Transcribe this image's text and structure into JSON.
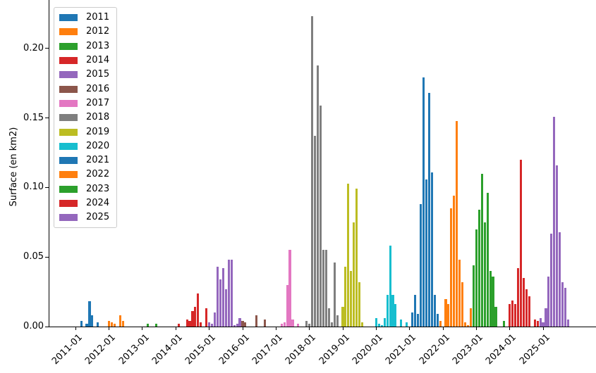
{
  "figure": {
    "ylabel": "Surface (en km2)"
  },
  "chart_data": {
    "type": "bar",
    "title": "",
    "xlabel": "",
    "ylabel": "Surface (en km2)",
    "ylim": [
      0,
      0.2345
    ],
    "grid": false,
    "legend_position": "upper left",
    "x_unit": "month index, 0 = 2011-01",
    "xlim_months": [
      -9.7,
      187
    ],
    "y_ticks": [
      {
        "value": 0.0,
        "label": "0.00"
      },
      {
        "value": 0.05,
        "label": "0.05"
      },
      {
        "value": 0.1,
        "label": "0.10"
      },
      {
        "value": 0.15,
        "label": "0.15"
      },
      {
        "value": 0.2,
        "label": "0.20"
      }
    ],
    "x_ticks": [
      {
        "month": 0,
        "label": "2011-01"
      },
      {
        "month": 12,
        "label": "2012-01"
      },
      {
        "month": 24,
        "label": "2013-01"
      },
      {
        "month": 36,
        "label": "2014-01"
      },
      {
        "month": 48,
        "label": "2015-01"
      },
      {
        "month": 60,
        "label": "2016-01"
      },
      {
        "month": 72,
        "label": "2017-01"
      },
      {
        "month": 84,
        "label": "2018-01"
      },
      {
        "month": 96,
        "label": "2019-01"
      },
      {
        "month": 108,
        "label": "2020-01"
      },
      {
        "month": 120,
        "label": "2021-01"
      },
      {
        "month": 132,
        "label": "2022-01"
      },
      {
        "month": 144,
        "label": "2023-01"
      },
      {
        "month": 156,
        "label": "2024-01"
      },
      {
        "month": 168,
        "label": "2025-01"
      }
    ],
    "series": [
      {
        "name": "2011",
        "color": "#1f77b4",
        "points": [
          [
            2,
            0.004
          ],
          [
            4,
            0.002
          ],
          [
            5,
            0.018
          ],
          [
            6,
            0.008
          ],
          [
            8,
            0.003
          ]
        ]
      },
      {
        "name": "2012",
        "color": "#ff7f0e",
        "points": [
          [
            12,
            0.004
          ],
          [
            13,
            0.003
          ],
          [
            14,
            0.002
          ],
          [
            16,
            0.008
          ],
          [
            17,
            0.004
          ]
        ]
      },
      {
        "name": "2013",
        "color": "#2ca02c",
        "points": [
          [
            26,
            0.002
          ],
          [
            29,
            0.002
          ]
        ]
      },
      {
        "name": "2014",
        "color": "#d62728",
        "points": [
          [
            37,
            0.002
          ],
          [
            40,
            0.005
          ],
          [
            41,
            0.004
          ],
          [
            42,
            0.011
          ],
          [
            43,
            0.014
          ],
          [
            44,
            0.024
          ],
          [
            45,
            0.003
          ],
          [
            47,
            0.013
          ]
        ]
      },
      {
        "name": "2015",
        "color": "#9467bd",
        "points": [
          [
            48,
            0.003
          ],
          [
            49,
            0.002
          ],
          [
            50,
            0.01
          ],
          [
            51,
            0.043
          ],
          [
            52,
            0.034
          ],
          [
            53,
            0.042
          ],
          [
            54,
            0.027
          ],
          [
            55,
            0.048
          ],
          [
            56,
            0.048
          ],
          [
            57,
            0.001
          ],
          [
            58,
            0.002
          ],
          [
            59,
            0.006
          ]
        ]
      },
      {
        "name": "2016",
        "color": "#8c564b",
        "points": [
          [
            60,
            0.004
          ],
          [
            61,
            0.003
          ],
          [
            65,
            0.008
          ],
          [
            68,
            0.005
          ]
        ]
      },
      {
        "name": "2017",
        "color": "#e377c2",
        "points": [
          [
            74,
            0.002
          ],
          [
            75,
            0.003
          ],
          [
            76,
            0.03
          ],
          [
            77,
            0.055
          ],
          [
            78,
            0.005
          ],
          [
            80,
            0.002
          ]
        ]
      },
      {
        "name": "2018",
        "color": "#7f7f7f",
        "points": [
          [
            83,
            0.004
          ],
          [
            84,
            0.002
          ],
          [
            85,
            0.223
          ],
          [
            86,
            0.137
          ],
          [
            87,
            0.188
          ],
          [
            88,
            0.159
          ],
          [
            89,
            0.055
          ],
          [
            90,
            0.055
          ],
          [
            91,
            0.013
          ],
          [
            92,
            0.003
          ],
          [
            93,
            0.046
          ],
          [
            94,
            0.008
          ]
        ]
      },
      {
        "name": "2019",
        "color": "#bcbd22",
        "points": [
          [
            96,
            0.014
          ],
          [
            97,
            0.043
          ],
          [
            98,
            0.103
          ],
          [
            99,
            0.04
          ],
          [
            100,
            0.075
          ],
          [
            101,
            0.099
          ],
          [
            102,
            0.032
          ],
          [
            103,
            0.003
          ]
        ]
      },
      {
        "name": "2020",
        "color": "#17becf",
        "points": [
          [
            108,
            0.006
          ],
          [
            109,
            0.002
          ],
          [
            110,
            0.001
          ],
          [
            111,
            0.006
          ],
          [
            112,
            0.023
          ],
          [
            113,
            0.058
          ],
          [
            114,
            0.023
          ],
          [
            115,
            0.016
          ],
          [
            117,
            0.005
          ],
          [
            119,
            0.003
          ]
        ]
      },
      {
        "name": "2021",
        "color": "#1f77b4",
        "points": [
          [
            121,
            0.01
          ],
          [
            122,
            0.023
          ],
          [
            123,
            0.009
          ],
          [
            124,
            0.088
          ],
          [
            125,
            0.179
          ],
          [
            126,
            0.106
          ],
          [
            127,
            0.168
          ],
          [
            128,
            0.111
          ],
          [
            129,
            0.023
          ],
          [
            130,
            0.009
          ]
        ]
      },
      {
        "name": "2022",
        "color": "#ff7f0e",
        "points": [
          [
            131,
            0.004
          ],
          [
            133,
            0.02
          ],
          [
            134,
            0.016
          ],
          [
            135,
            0.085
          ],
          [
            136,
            0.094
          ],
          [
            137,
            0.148
          ],
          [
            138,
            0.048
          ],
          [
            139,
            0.032
          ],
          [
            140,
            0.003
          ],
          [
            141,
            0.001
          ],
          [
            142,
            0.013
          ]
        ]
      },
      {
        "name": "2023",
        "color": "#2ca02c",
        "points": [
          [
            143,
            0.044
          ],
          [
            144,
            0.07
          ],
          [
            145,
            0.084
          ],
          [
            146,
            0.11
          ],
          [
            147,
            0.075
          ],
          [
            148,
            0.096
          ],
          [
            149,
            0.04
          ],
          [
            150,
            0.036
          ],
          [
            151,
            0.014
          ],
          [
            154,
            0.004
          ]
        ]
      },
      {
        "name": "2024",
        "color": "#d62728",
        "points": [
          [
            156,
            0.016
          ],
          [
            157,
            0.019
          ],
          [
            158,
            0.016
          ],
          [
            159,
            0.042
          ],
          [
            160,
            0.12
          ],
          [
            161,
            0.035
          ],
          [
            162,
            0.027
          ],
          [
            163,
            0.022
          ],
          [
            165,
            0.005
          ],
          [
            166,
            0.004
          ]
        ]
      },
      {
        "name": "2025",
        "color": "#9467bd",
        "points": [
          [
            167,
            0.006
          ],
          [
            168,
            0.003
          ],
          [
            169,
            0.013
          ],
          [
            170,
            0.036
          ],
          [
            171,
            0.067
          ],
          [
            172,
            0.151
          ],
          [
            173,
            0.116
          ],
          [
            174,
            0.068
          ],
          [
            175,
            0.032
          ],
          [
            176,
            0.028
          ],
          [
            177,
            0.005
          ]
        ]
      }
    ]
  },
  "legend": {
    "entries": [
      {
        "label": "2011",
        "color": "#1f77b4"
      },
      {
        "label": "2012",
        "color": "#ff7f0e"
      },
      {
        "label": "2013",
        "color": "#2ca02c"
      },
      {
        "label": "2014",
        "color": "#d62728"
      },
      {
        "label": "2015",
        "color": "#9467bd"
      },
      {
        "label": "2016",
        "color": "#8c564b"
      },
      {
        "label": "2017",
        "color": "#e377c2"
      },
      {
        "label": "2018",
        "color": "#7f7f7f"
      },
      {
        "label": "2019",
        "color": "#bcbd22"
      },
      {
        "label": "2020",
        "color": "#17becf"
      },
      {
        "label": "2021",
        "color": "#1f77b4"
      },
      {
        "label": "2022",
        "color": "#ff7f0e"
      },
      {
        "label": "2023",
        "color": "#2ca02c"
      },
      {
        "label": "2024",
        "color": "#d62728"
      },
      {
        "label": "2025",
        "color": "#9467bd"
      }
    ]
  }
}
